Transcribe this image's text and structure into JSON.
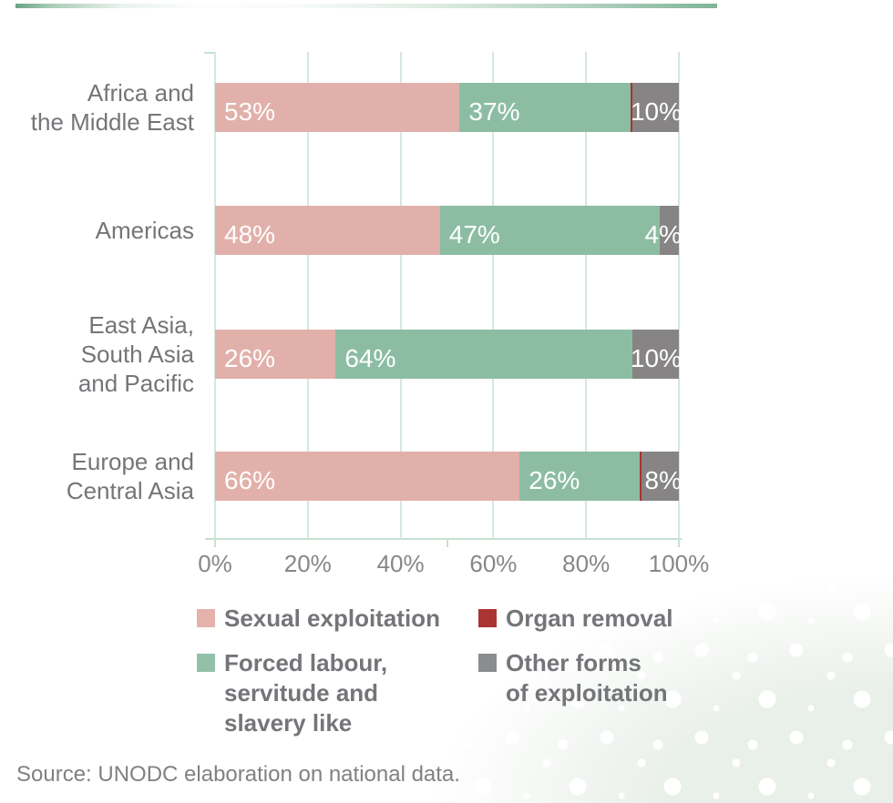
{
  "page": {
    "source_note": "Source: UNODC elaboration on national data."
  },
  "chart_data": {
    "type": "bar",
    "orientation": "horizontal",
    "stacked": true,
    "title": "",
    "xlabel": "",
    "ylabel": "",
    "xlim": [
      0,
      100
    ],
    "grid": "vertical",
    "x_tick_labels": [
      "0%",
      "20%",
      "40%",
      "60%",
      "80%",
      "100%"
    ],
    "axis_major_tick_percents": [
      0,
      50,
      100
    ],
    "categories": [
      "Africa and the Middle East",
      "Americas",
      "East Asia, South Asia and Pacific",
      "Europe and Central Asia"
    ],
    "category_label_lines": [
      [
        "Africa and",
        "the Middle East"
      ],
      [
        "Americas"
      ],
      [
        "East Asia,",
        "South Asia",
        "and Pacific"
      ],
      [
        "Europe and",
        "Central Asia"
      ]
    ],
    "series": [
      {
        "name": "Sexual exploitation",
        "color": "#e2b0aa",
        "values": [
          53,
          48,
          26,
          66
        ]
      },
      {
        "name": "Forced labour, servitude and slavery like",
        "color": "#8cbda3",
        "values": [
          37,
          47,
          64,
          26
        ]
      },
      {
        "name": "Organ removal",
        "color": "#a93330",
        "values": [
          0.5,
          0,
          0,
          0.5
        ]
      },
      {
        "name": "Other forms of exploitation",
        "color": "#878486",
        "values": [
          10,
          4,
          10,
          8
        ]
      }
    ],
    "bar_value_labels": [
      [
        "53%",
        "37%",
        "",
        "10%"
      ],
      [
        "48%",
        "47%",
        "",
        "4%"
      ],
      [
        "26%",
        "64%",
        "",
        "10%"
      ],
      [
        "66%",
        "26%",
        "",
        "8%"
      ]
    ],
    "legend_position": "bottom"
  },
  "legend": {
    "items": [
      {
        "label": "Sexual exploitation",
        "label_lines": [
          "Sexual exploitation"
        ],
        "color": "#e5b1ab"
      },
      {
        "label": "Organ removal",
        "label_lines": [
          "Organ removal"
        ],
        "color": "#aa3431"
      },
      {
        "label": "Forced labour, servitude and slavery like",
        "label_lines": [
          "Forced labour,",
          "servitude and",
          "slavery like"
        ],
        "color": "#92c0a8"
      },
      {
        "label": "Other forms of exploitation",
        "label_lines": [
          "Other forms",
          "of exploitation"
        ],
        "color": "#8a8c8f"
      }
    ]
  },
  "colors": {
    "accent_strip_left": "#68a284",
    "accent_strip_right": "#7fb596",
    "gridline": "#d4e9dd",
    "axis_line": "#c5e2d2",
    "category_text": "#737578",
    "tick_text": "#85878a",
    "legend_text": "#747579",
    "value_text": "#ffffff",
    "source_text": "#7f8184",
    "texture_fill": "#e9efe9"
  }
}
